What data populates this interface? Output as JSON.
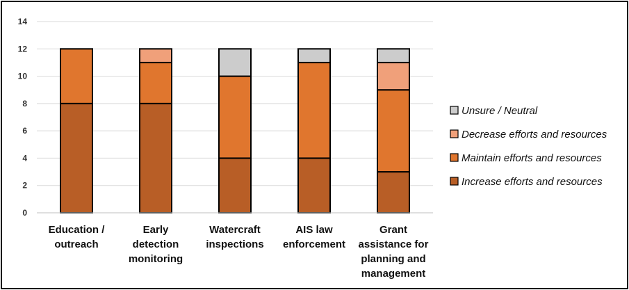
{
  "chart_data": {
    "type": "bar",
    "stacked": true,
    "categories": [
      [
        "Education /",
        "outreach"
      ],
      [
        "Early",
        "detection",
        "monitoring"
      ],
      [
        "Watercraft",
        "inspections"
      ],
      [
        "AIS law",
        "enforcement"
      ],
      [
        "Grant",
        "assistance for",
        "planning and",
        "management"
      ]
    ],
    "series": [
      {
        "name": "Increase efforts and resources",
        "color": "#b85e26",
        "values": [
          8,
          8,
          4,
          4,
          3
        ]
      },
      {
        "name": "Maintain efforts and resources",
        "color": "#e0762e",
        "values": [
          4,
          3,
          6,
          7,
          6
        ]
      },
      {
        "name": "Decrease efforts and resources",
        "color": "#f0a07a",
        "values": [
          0,
          1,
          0,
          0,
          2
        ]
      },
      {
        "name": "Unsure / Neutral",
        "color": "#cccccc",
        "values": [
          0,
          0,
          2,
          1,
          1
        ]
      }
    ],
    "ylim": [
      0,
      14
    ],
    "yticks": [
      0,
      2,
      4,
      6,
      8,
      10,
      12,
      14
    ],
    "grid": true,
    "legend_position": "right",
    "legend_order": [
      "Unsure / Neutral",
      "Decrease efforts and resources",
      "Maintain efforts and resources",
      "Increase efforts and resources"
    ]
  }
}
